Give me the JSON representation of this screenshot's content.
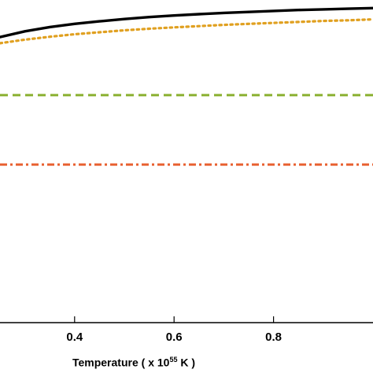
{
  "chart_data": {
    "type": "line",
    "title": "",
    "xlabel": {
      "main": "Temperature",
      "open": "( x 10",
      "exponent": "55",
      "close": " K )"
    },
    "ylabel": "",
    "xlim": [
      0.25,
      1.0
    ],
    "ylim": [
      0,
      1
    ],
    "x_ticks": [
      {
        "value": 0.4,
        "label": "0.4"
      },
      {
        "value": 0.6,
        "label": "0.6"
      },
      {
        "value": 0.8,
        "label": "0.8"
      }
    ],
    "grid": false,
    "legend": "none",
    "series": [
      {
        "color": "#000000",
        "style": "solid",
        "x": [
          0.25,
          0.3,
          0.35,
          0.4,
          0.45,
          0.5,
          0.55,
          0.6,
          0.65,
          0.7,
          0.75,
          0.8,
          0.85,
          0.9,
          0.95,
          1.0
        ],
        "values": [
          0.885,
          0.903,
          0.916,
          0.926,
          0.934,
          0.941,
          0.947,
          0.952,
          0.956,
          0.96,
          0.963,
          0.966,
          0.969,
          0.971,
          0.973,
          0.975
        ]
      },
      {
        "color": "#e0a020",
        "style": "dotted",
        "x": [
          0.25,
          0.3,
          0.35,
          0.4,
          0.45,
          0.5,
          0.55,
          0.6,
          0.65,
          0.7,
          0.75,
          0.8,
          0.85,
          0.9,
          0.95,
          1.0
        ],
        "values": [
          0.866,
          0.877,
          0.886,
          0.894,
          0.9,
          0.906,
          0.911,
          0.915,
          0.919,
          0.923,
          0.926,
          0.929,
          0.932,
          0.935,
          0.937,
          0.94
        ]
      },
      {
        "color": "#8ab030",
        "style": "dashed",
        "x": [
          0.25,
          1.0
        ],
        "values": [
          0.705,
          0.705
        ]
      },
      {
        "color": "#e86030",
        "style": "dashdot",
        "x": [
          0.25,
          1.0
        ],
        "values": [
          0.49,
          0.49
        ]
      }
    ]
  }
}
